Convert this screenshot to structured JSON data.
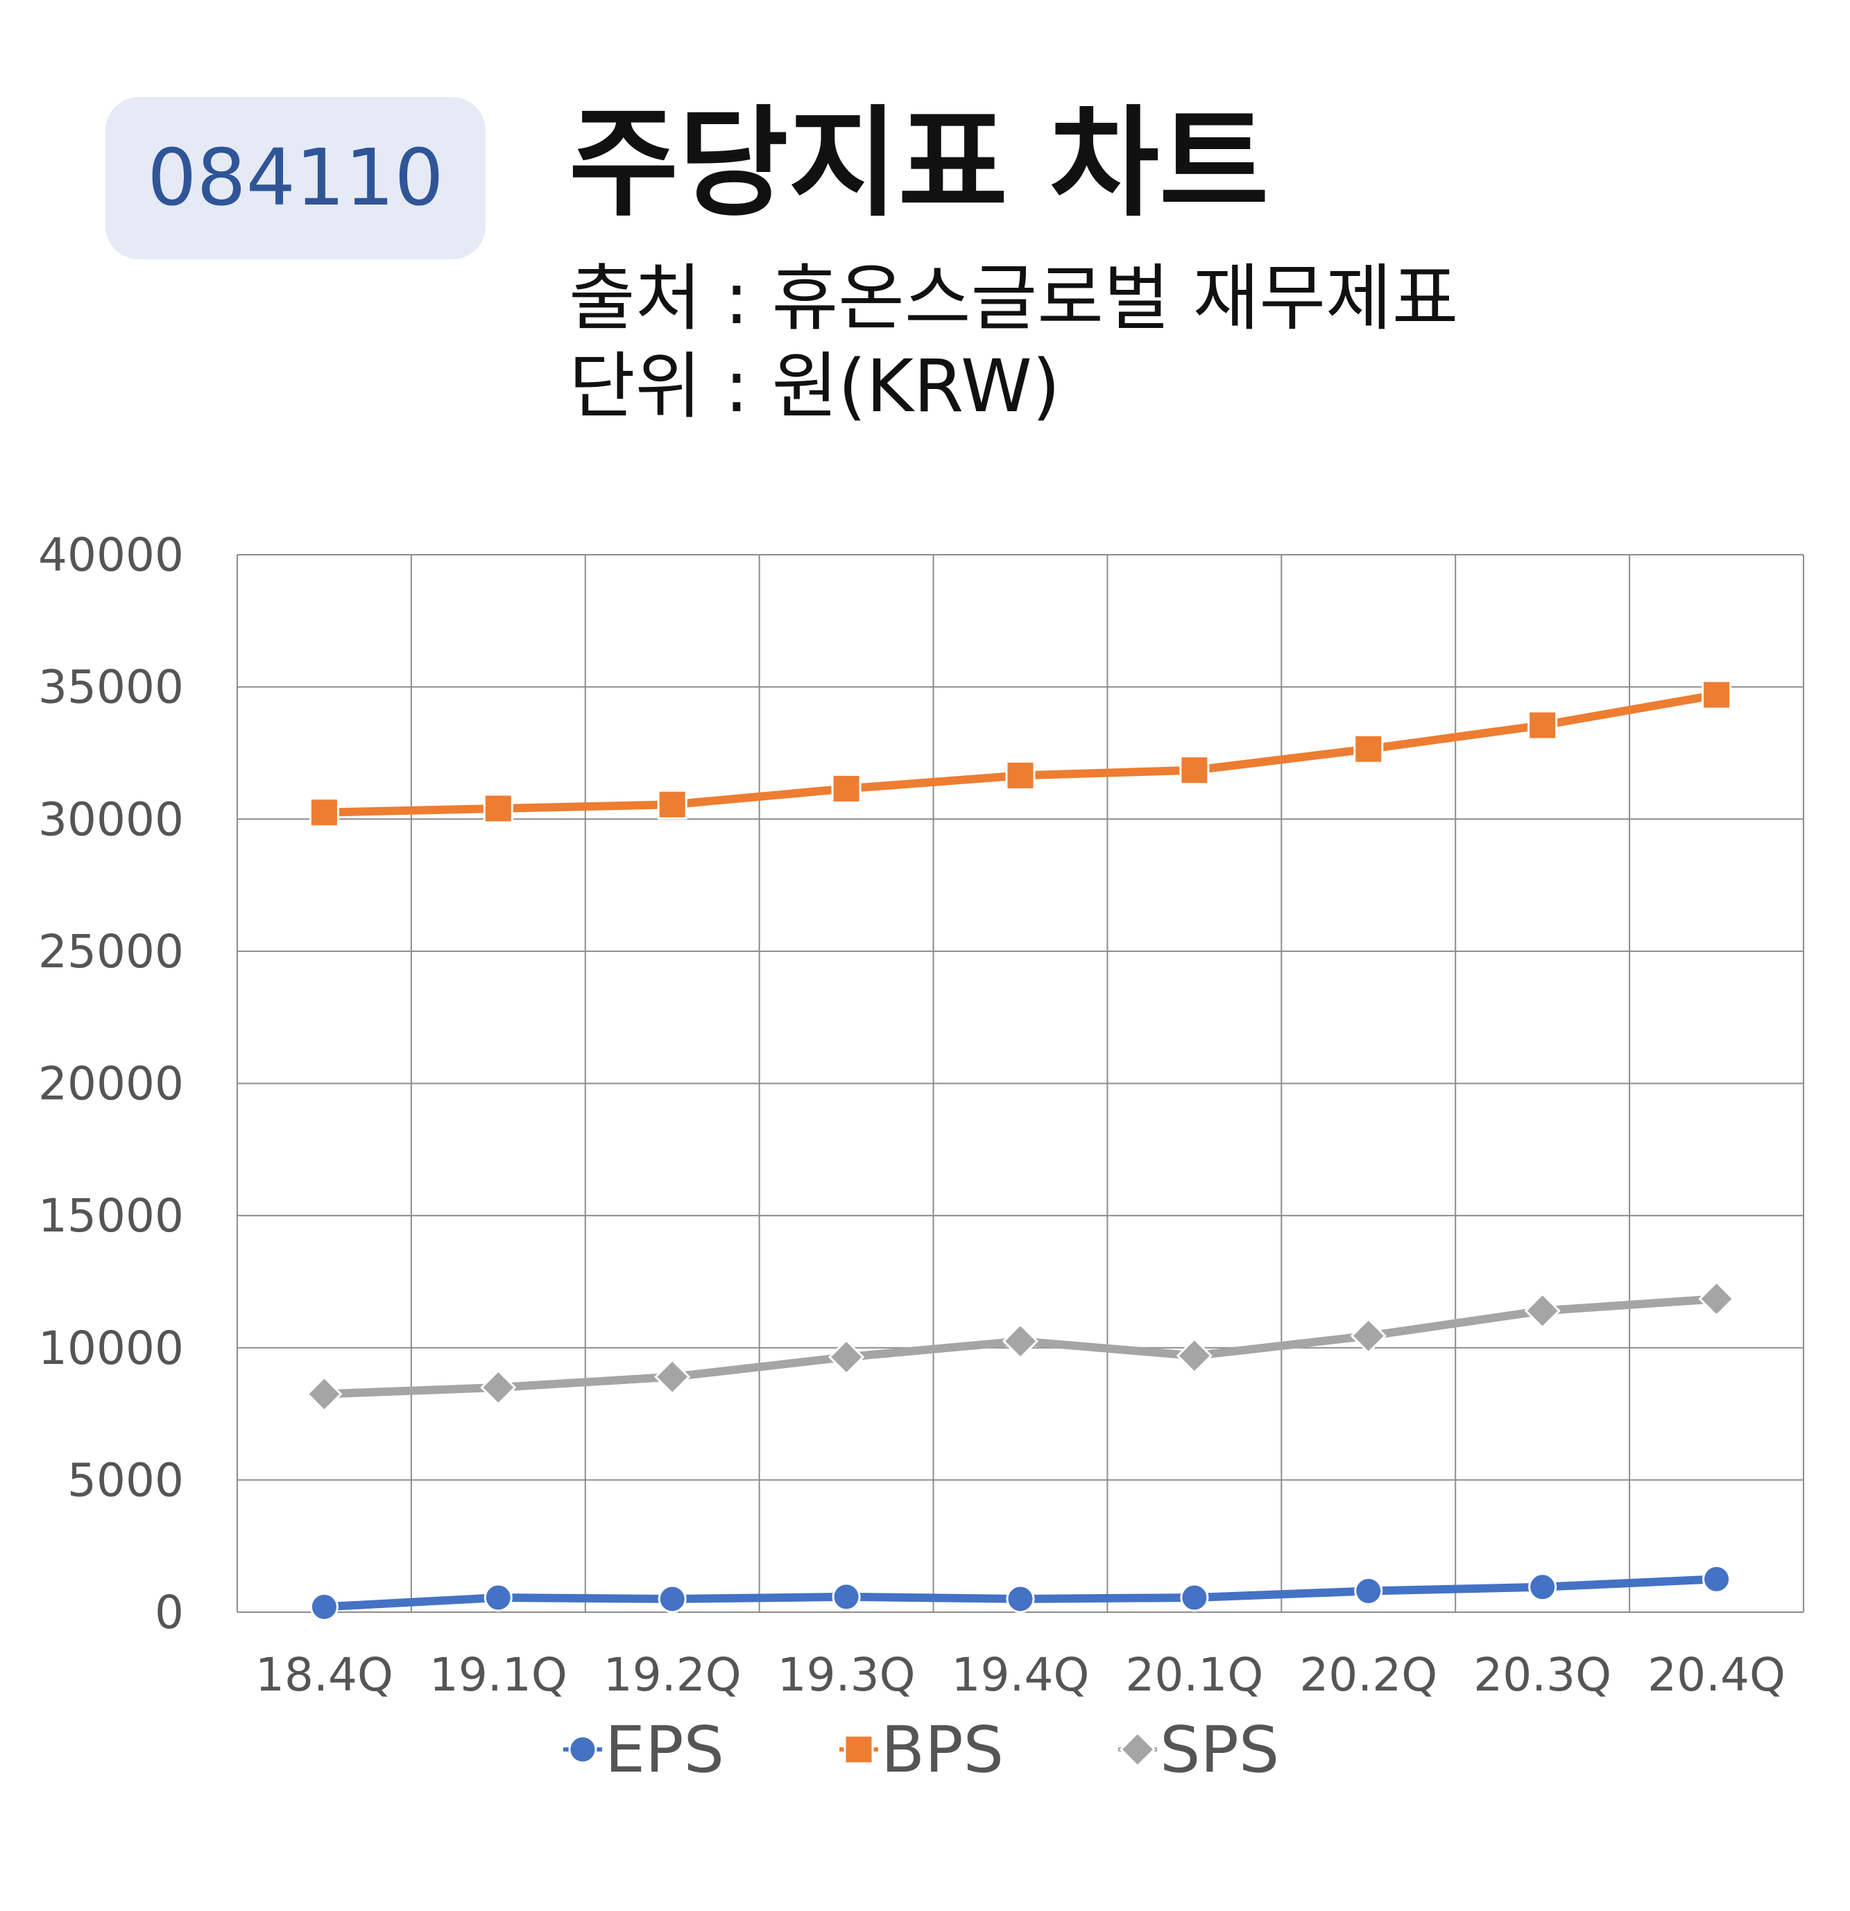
{
  "header": {
    "stock_code": "084110",
    "title": "주당지표 차트",
    "source": "출처 : 휴온스글로벌 재무제표",
    "unit": "단위 : 원(KRW)"
  },
  "colors": {
    "badge_bg": "#e5eaf5",
    "badge_text": "#2f5597",
    "grid": "#8c8c8c"
  },
  "chart_data": {
    "type": "line",
    "categories": [
      "18.4Q",
      "19.1Q",
      "19.2Q",
      "19.3Q",
      "19.4Q",
      "20.1Q",
      "20.2Q",
      "20.3Q",
      "20.4Q"
    ],
    "ylim": [
      0,
      40000
    ],
    "yticks": [
      "0",
      "5000",
      "10000",
      "15000",
      "20000",
      "25000",
      "30000",
      "35000",
      "40000"
    ],
    "grid": true,
    "legend_position": "bottom",
    "series": [
      {
        "name": "EPS",
        "marker": "circle",
        "color": "#4472c4",
        "values": [
          200,
          550,
          500,
          580,
          500,
          550,
          800,
          950,
          1250
        ]
      },
      {
        "name": "BPS",
        "marker": "square",
        "color": "#ed7d31",
        "values": [
          30250,
          30400,
          30550,
          31150,
          31650,
          31850,
          32650,
          33550,
          34700
        ]
      },
      {
        "name": "SPS",
        "marker": "diamond",
        "color": "#a5a5a5",
        "values": [
          8250,
          8500,
          8900,
          9650,
          10250,
          9700,
          10450,
          11400,
          11850
        ]
      }
    ]
  }
}
